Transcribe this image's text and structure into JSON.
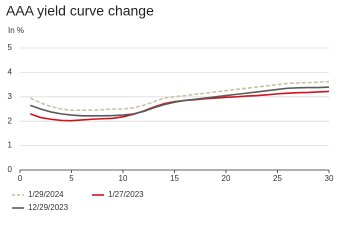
{
  "chart_data": {
    "type": "line",
    "title": "AAA yield curve change",
    "subtitle": "In %",
    "x": [
      1,
      2,
      3,
      4,
      5,
      6,
      7,
      8,
      9,
      10,
      11,
      12,
      13,
      14,
      15,
      16,
      17,
      18,
      19,
      20,
      21,
      22,
      23,
      24,
      25,
      26,
      27,
      28,
      29,
      30
    ],
    "series": [
      {
        "name": "1/29/2024",
        "color": "#c9c1aa",
        "dashed": true,
        "values": [
          2.95,
          2.75,
          2.6,
          2.5,
          2.45,
          2.45,
          2.45,
          2.47,
          2.5,
          2.5,
          2.55,
          2.65,
          2.8,
          2.95,
          3.0,
          3.05,
          3.1,
          3.15,
          3.2,
          3.25,
          3.3,
          3.35,
          3.4,
          3.45,
          3.5,
          3.55,
          3.57,
          3.58,
          3.6,
          3.62
        ]
      },
      {
        "name": "1/27/2023",
        "color": "#d0141c",
        "dashed": false,
        "values": [
          2.3,
          2.15,
          2.08,
          2.03,
          2.02,
          2.05,
          2.08,
          2.1,
          2.12,
          2.18,
          2.28,
          2.42,
          2.58,
          2.72,
          2.8,
          2.85,
          2.88,
          2.92,
          2.95,
          2.98,
          3.0,
          3.03,
          3.05,
          3.08,
          3.12,
          3.15,
          3.17,
          3.18,
          3.2,
          3.22
        ]
      },
      {
        "name": "12/29/2023",
        "color": "#5a5a5a",
        "dashed": false,
        "values": [
          2.65,
          2.5,
          2.38,
          2.3,
          2.25,
          2.22,
          2.22,
          2.22,
          2.23,
          2.25,
          2.3,
          2.4,
          2.55,
          2.68,
          2.78,
          2.85,
          2.9,
          2.95,
          3.0,
          3.05,
          3.1,
          3.15,
          3.2,
          3.25,
          3.3,
          3.35,
          3.37,
          3.38,
          3.38,
          3.4
        ]
      }
    ],
    "xlim": [
      0,
      30
    ],
    "xticks": [
      0,
      5,
      10,
      15,
      20,
      25,
      30
    ],
    "ylim": [
      0,
      5
    ],
    "yticks": [
      0,
      1,
      2,
      3,
      4,
      5
    ],
    "grid": true,
    "legend": "bottom"
  }
}
